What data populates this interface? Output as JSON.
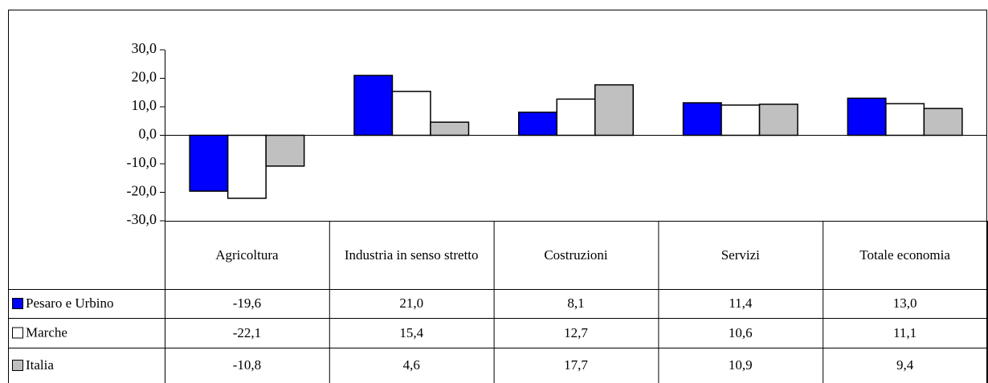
{
  "chart_data": {
    "type": "bar",
    "categories": [
      "Agricoltura",
      "Industria in senso stretto",
      "Costruzioni",
      "Servizi",
      "Totale economia"
    ],
    "series": [
      {
        "name": "Pesaro e Urbino",
        "color": "#0000ff",
        "values": [
          -19.6,
          21.0,
          8.1,
          11.4,
          13.0
        ],
        "value_labels": [
          "-19,6",
          "21,0",
          "8,1",
          "11,4",
          "13,0"
        ]
      },
      {
        "name": "Marche",
        "color": "#ffffff",
        "values": [
          -22.1,
          15.4,
          12.7,
          10.6,
          11.1
        ],
        "value_labels": [
          "-22,1",
          "15,4",
          "12,7",
          "10,6",
          "11,1"
        ]
      },
      {
        "name": "Italia",
        "color": "#c0c0c0",
        "values": [
          -10.8,
          4.6,
          17.7,
          10.9,
          9.4
        ],
        "value_labels": [
          "-10,8",
          "4,6",
          "17,7",
          "10,9",
          "9,4"
        ]
      }
    ],
    "ylim": [
      -30,
      30
    ],
    "yticks": [
      {
        "value": -30,
        "label": "-30,0"
      },
      {
        "value": -20,
        "label": "-20,0"
      },
      {
        "value": -10,
        "label": "-10,0"
      },
      {
        "value": 0,
        "label": "0,0"
      },
      {
        "value": 10,
        "label": "10,0"
      },
      {
        "value": 20,
        "label": "20,0"
      },
      {
        "value": 30,
        "label": "30,0"
      }
    ]
  }
}
